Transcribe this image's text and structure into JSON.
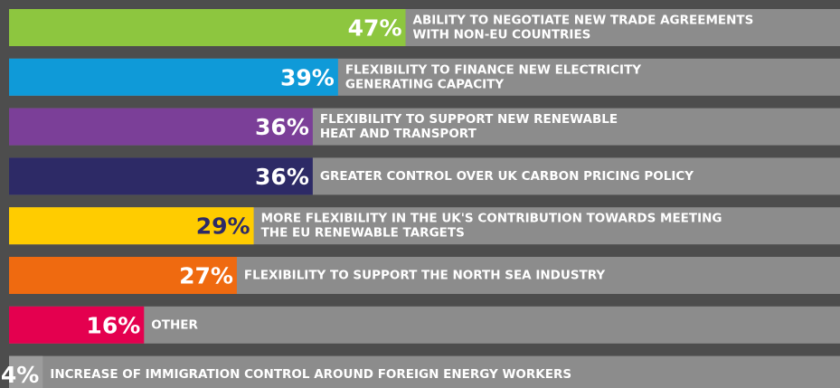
{
  "chart_data": {
    "type": "bar",
    "categories": [
      [
        "ABILITY TO NEGOTIATE NEW TRADE AGREEMENTS",
        "WITH NON-EU COUNTRIES"
      ],
      [
        "FLEXIBILITY TO FINANCE NEW ELECTRICITY",
        "GENERATING CAPACITY"
      ],
      [
        "FLEXIBILITY TO SUPPORT NEW RENEWABLE",
        "HEAT AND TRANSPORT"
      ],
      [
        "GREATER CONTROL OVER UK CARBON PRICING POLICY"
      ],
      [
        "MORE FLEXIBILITY IN THE UK'S CONTRIBUTION TOWARDS MEETING",
        "THE EU RENEWABLE TARGETS"
      ],
      [
        "FLEXIBILITY TO SUPPORT THE NORTH SEA INDUSTRY"
      ],
      [
        "OTHER"
      ],
      [
        "INCREASE OF IMMIGRATION CONTROL AROUND FOREIGN ENERGY WORKERS"
      ]
    ],
    "values": [
      47,
      39,
      36,
      36,
      29,
      27,
      16,
      4
    ],
    "value_labels": [
      "47%",
      "39%",
      "36%",
      "36%",
      "29%",
      "27%",
      "16%",
      "4%"
    ],
    "colors": [
      "#8dc63f",
      "#0f9ad8",
      "#7b3f98",
      "#2d2a66",
      "#ffcc00",
      "#ef6a10",
      "#e4004f",
      "#9c9c9c"
    ],
    "xlim": [
      0,
      98.5
    ]
  }
}
